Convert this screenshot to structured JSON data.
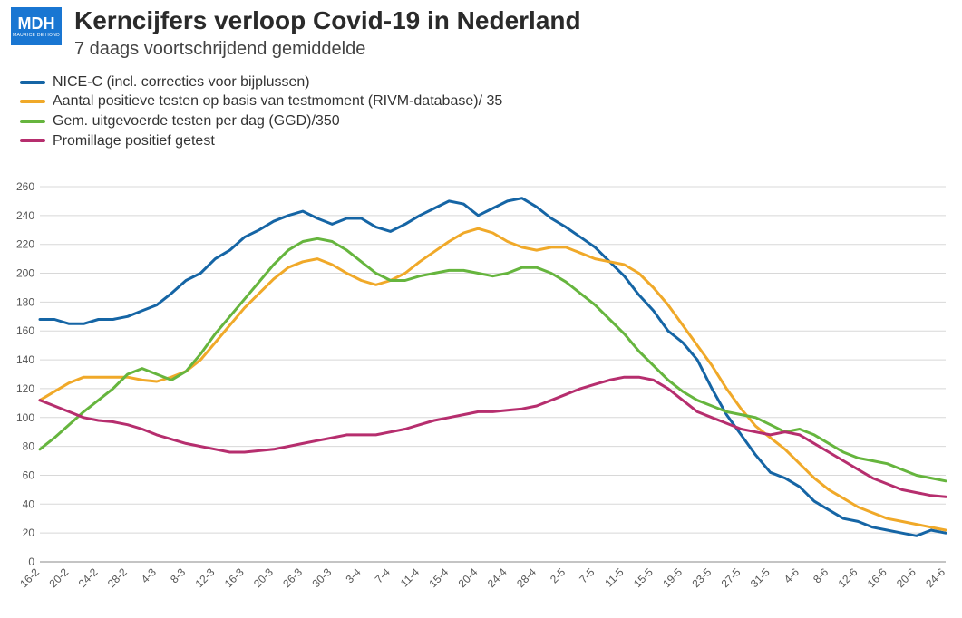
{
  "logo": {
    "text": "MDH",
    "subtext": "MAURICE DE HOND",
    "bg": "#1976d2",
    "fg": "#ffffff"
  },
  "title": "Kerncijfers verloop Covid-19 in Nederland",
  "subtitle": "7 daags voortschrijdend gemiddelde",
  "chart": {
    "type": "line",
    "background_color": "#ffffff",
    "grid_color": "#d8d8d8",
    "axis_color": "#888888",
    "line_width": 3,
    "ylim": [
      0,
      260
    ],
    "ytick_step": 20,
    "y_label_fontsize": 12,
    "x_label_fontsize": 12,
    "x_label_rotation": -45,
    "x_categories": [
      "16-2",
      "20-2",
      "24-2",
      "28-2",
      "4-3",
      "8-3",
      "12-3",
      "16-3",
      "20-3",
      "26-3",
      "30-3",
      "3-4",
      "7-4",
      "11-4",
      "15-4",
      "20-4",
      "24-4",
      "28-4",
      "2-5",
      "7-5",
      "11-5",
      "15-5",
      "19-5",
      "23-5",
      "27-5",
      "31-5",
      "4-6",
      "8-6",
      "12-6",
      "16-6",
      "20-6",
      "24-6"
    ],
    "series": [
      {
        "name": "NICE-C (incl. correcties voor bijplussen)",
        "color": "#1565a5",
        "values": [
          168,
          168,
          165,
          165,
          168,
          168,
          170,
          174,
          178,
          186,
          195,
          200,
          210,
          216,
          225,
          230,
          236,
          240,
          243,
          238,
          234,
          238,
          238,
          232,
          229,
          234,
          240,
          245,
          250,
          248,
          240,
          245,
          250,
          252,
          246,
          238,
          232,
          225,
          218,
          208,
          198,
          185,
          174,
          160,
          152,
          140,
          120,
          102,
          88,
          74,
          62,
          58,
          52,
          42,
          36,
          30,
          28,
          24,
          22,
          20,
          18,
          22,
          20
        ]
      },
      {
        "name": "Aantal positieve testen op basis van testmoment (RIVM-database)/ 35",
        "color": "#f0a929",
        "values": [
          112,
          118,
          124,
          128,
          128,
          128,
          128,
          126,
          125,
          128,
          132,
          140,
          152,
          164,
          176,
          186,
          196,
          204,
          208,
          210,
          206,
          200,
          195,
          192,
          195,
          200,
          208,
          215,
          222,
          228,
          231,
          228,
          222,
          218,
          216,
          218,
          218,
          214,
          210,
          208,
          206,
          200,
          190,
          178,
          164,
          150,
          136,
          120,
          106,
          94,
          86,
          78,
          68,
          58,
          50,
          44,
          38,
          34,
          30,
          28,
          26,
          24,
          22
        ]
      },
      {
        "name": "Gem. uitgevoerde testen per dag (GGD)/350",
        "color": "#66b53e",
        "values": [
          78,
          86,
          95,
          104,
          112,
          120,
          130,
          134,
          130,
          126,
          132,
          144,
          158,
          170,
          182,
          194,
          206,
          216,
          222,
          224,
          222,
          216,
          208,
          200,
          195,
          195,
          198,
          200,
          202,
          202,
          200,
          198,
          200,
          204,
          204,
          200,
          194,
          186,
          178,
          168,
          158,
          146,
          136,
          126,
          118,
          112,
          108,
          104,
          102,
          100,
          95,
          90,
          92,
          88,
          82,
          76,
          72,
          70,
          68,
          64,
          60,
          58,
          56
        ]
      },
      {
        "name": "Promillage positief getest",
        "color": "#b62e6e",
        "values": [
          112,
          108,
          104,
          100,
          98,
          97,
          95,
          92,
          88,
          85,
          82,
          80,
          78,
          76,
          76,
          77,
          78,
          80,
          82,
          84,
          86,
          88,
          88,
          88,
          90,
          92,
          95,
          98,
          100,
          102,
          104,
          104,
          105,
          106,
          108,
          112,
          116,
          120,
          123,
          126,
          128,
          128,
          126,
          120,
          112,
          104,
          100,
          96,
          92,
          90,
          88,
          90,
          88,
          82,
          76,
          70,
          64,
          58,
          54,
          50,
          48,
          46,
          45
        ]
      }
    ]
  }
}
